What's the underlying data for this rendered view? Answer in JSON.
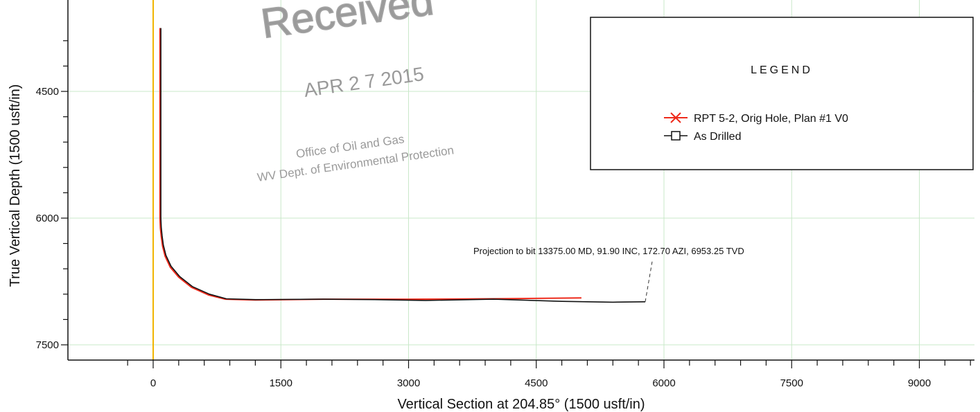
{
  "chart_data": {
    "type": "line",
    "xlabel": "Vertical Section at 204.85° (1500 usft/in)",
    "ylabel": "True Vertical Depth (1500 usft/in)",
    "xlim": [
      -600,
      9650
    ],
    "ylim": [
      3750,
      7690
    ],
    "y_inverted": true,
    "x_ticks": [
      0,
      1500,
      3000,
      4500,
      6000,
      7500,
      9000
    ],
    "y_ticks": [
      4500,
      6000,
      7500
    ],
    "grid": true,
    "legend": {
      "title": "LEGEND",
      "placement": "top-right",
      "entries": [
        {
          "label": "RPT 5-2, Orig Hole, Plan #1 V0",
          "color": "#ee2a1b",
          "marker": "x"
        },
        {
          "label": "As Drilled",
          "color": "#111111",
          "marker": "square"
        }
      ]
    },
    "reference_line": {
      "x": 0,
      "color": "#f0b400"
    },
    "series": [
      {
        "name": "RPT 5-2, Orig Hole, Plan #1 V0",
        "color": "#ee2a1b",
        "x": [
          80,
          80,
          85,
          95,
          110,
          140,
          200,
          300,
          450,
          650,
          850,
          1200,
          2000,
          3000,
          4000,
          5030
        ],
        "y": [
          3750,
          6000,
          6120,
          6220,
          6330,
          6450,
          6580,
          6700,
          6820,
          6910,
          6960,
          6970,
          6960,
          6960,
          6955,
          6945
        ]
      },
      {
        "name": "As Drilled",
        "color": "#111111",
        "x": [
          90,
          90,
          95,
          105,
          120,
          150,
          210,
          310,
          460,
          660,
          860,
          1200,
          2000,
          2600,
          3200,
          4000,
          4800,
          5400,
          5780
        ],
        "y": [
          3750,
          6000,
          6110,
          6210,
          6320,
          6440,
          6570,
          6690,
          6810,
          6900,
          6955,
          6965,
          6960,
          6965,
          6975,
          6960,
          6985,
          6995,
          6990
        ]
      }
    ],
    "annotations": [
      {
        "text": "Projection to bit 13375.00 MD, 91.90 INC, 172.70 AZI, 6953.25 TVD",
        "x": 5780,
        "y": 6990
      }
    ]
  },
  "stamp": {
    "received": "Received",
    "date": "APR 2 7 2015",
    "office": "Office of Oil and Gas",
    "dept": "WV Dept. of Environmental Protection"
  }
}
